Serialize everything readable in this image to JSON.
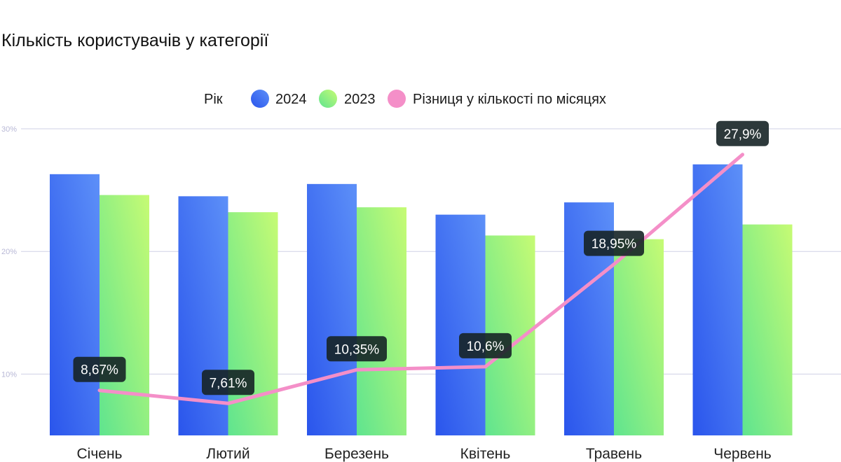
{
  "chart_data": {
    "type": "bar",
    "title": "Кількість користувачів у категорії",
    "legend_title": "Рік",
    "legend_placement": "top-center",
    "categories": [
      "Січень",
      "Лютий",
      "Березень",
      "Квітень",
      "Травень",
      "Червень"
    ],
    "ylim": [
      5,
      30
    ],
    "yticks": [
      10,
      20,
      30
    ],
    "ytick_labels": [
      "10%",
      "20%",
      "30%"
    ],
    "grid": true,
    "series": [
      {
        "name": "2024",
        "type": "bar",
        "color": "#3d6df2",
        "values": [
          26.3,
          24.5,
          25.5,
          23.0,
          24.0,
          27.1
        ]
      },
      {
        "name": "2023",
        "type": "bar",
        "color": "#8cf08a",
        "values": [
          24.6,
          23.2,
          23.6,
          21.3,
          21.0,
          22.2
        ]
      },
      {
        "name": "Різниця у кількості по місяцях",
        "type": "line",
        "color": "#f48fc8",
        "values": [
          8.67,
          7.61,
          10.35,
          10.6,
          18.95,
          27.9
        ],
        "labels": [
          "8,67%",
          "7,61%",
          "10,35%",
          "10,6%",
          "18,95%",
          "27,9%"
        ]
      }
    ]
  }
}
